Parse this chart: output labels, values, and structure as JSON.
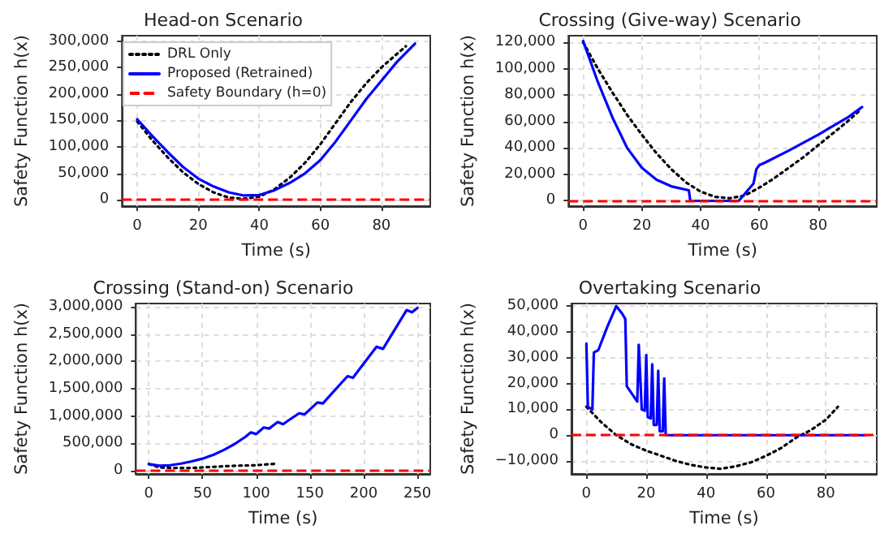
{
  "chart_data": [
    {
      "type": "line",
      "title": "Head-on Scenario",
      "xlabel": "Time (s)",
      "ylabel": "Safety Function h(x)",
      "xlim": [
        -5,
        96
      ],
      "xticks": [
        0,
        20,
        40,
        60,
        80
      ],
      "ylim": [
        -12000,
        310000
      ],
      "yticks": [
        {
          "value": 0,
          "label": "0"
        },
        {
          "value": 50000,
          "label": "50,000"
        },
        {
          "value": 100000,
          "label": "100,000"
        },
        {
          "value": 150000,
          "label": "150,000"
        },
        {
          "value": 200000,
          "label": "200,000"
        },
        {
          "value": 250000,
          "label": "250,000"
        },
        {
          "value": 300000,
          "label": "300,000"
        }
      ],
      "grid": true,
      "legend": "top left",
      "marker": "none",
      "ref_lines": [
        {
          "axis": "y",
          "value": 0,
          "label": "Safety Boundary (h=0)",
          "color": "#ff0000",
          "line_style": "dashed"
        }
      ],
      "series": [
        {
          "name": "DRL Only",
          "color": "#000000",
          "line_style": "dotted",
          "x": [
            0,
            5,
            10,
            15,
            20,
            25,
            30,
            35,
            40,
            45,
            50,
            55,
            60,
            65,
            70,
            75,
            80,
            85,
            88
          ],
          "values": [
            148000,
            112000,
            80000,
            52000,
            30000,
            14000,
            4000,
            2000,
            6000,
            20000,
            42000,
            70000,
            105000,
            145000,
            185000,
            220000,
            250000,
            275000,
            290000
          ]
        },
        {
          "name": "Proposed (Retrained)",
          "color": "#0000ff",
          "line_style": "solid",
          "x": [
            0,
            5,
            10,
            15,
            20,
            25,
            30,
            35,
            40,
            45,
            50,
            55,
            60,
            65,
            70,
            75,
            80,
            85,
            91
          ],
          "values": [
            152000,
            120000,
            90000,
            62000,
            40000,
            25000,
            14000,
            8000,
            9000,
            18000,
            32000,
            50000,
            75000,
            110000,
            150000,
            190000,
            225000,
            260000,
            295000
          ]
        }
      ]
    },
    {
      "type": "line",
      "title": "Crossing (Give-way) Scenario",
      "xlabel": "Time (s)",
      "ylabel": "Safety Function h(x)",
      "xlim": [
        -5,
        100
      ],
      "xticks": [
        0,
        20,
        40,
        60,
        80
      ],
      "ylim": [
        -4000,
        125000
      ],
      "yticks": [
        {
          "value": 0,
          "label": "0"
        },
        {
          "value": 20000,
          "label": "20,000"
        },
        {
          "value": 40000,
          "label": "40,000"
        },
        {
          "value": 60000,
          "label": "60,000"
        },
        {
          "value": 80000,
          "label": "80,000"
        },
        {
          "value": 100000,
          "label": "100,000"
        },
        {
          "value": 120000,
          "label": "120,000"
        }
      ],
      "grid": true,
      "marker": "none",
      "ref_lines": [
        {
          "axis": "y",
          "value": 0,
          "color": "#ff0000",
          "line_style": "dashed"
        }
      ],
      "series": [
        {
          "color": "#000000",
          "line_style": "dotted",
          "x": [
            0,
            5,
            10,
            15,
            20,
            25,
            30,
            35,
            40,
            45,
            50,
            55,
            60,
            65,
            70,
            75,
            80,
            85,
            90,
            94
          ],
          "values": [
            120000,
            100000,
            82000,
            65000,
            50000,
            36000,
            24000,
            14000,
            7000,
            3000,
            2000,
            4000,
            10000,
            17000,
            25000,
            33000,
            42000,
            51000,
            60000,
            68000
          ]
        },
        {
          "color": "#0000ff",
          "line_style": "solid",
          "x": [
            0,
            5,
            10,
            15,
            20,
            25,
            30,
            36,
            36.5,
            53,
            58,
            59,
            60,
            62,
            70,
            80,
            90,
            95
          ],
          "values": [
            121000,
            90000,
            63000,
            40000,
            25000,
            16000,
            11000,
            8000,
            0,
            0,
            13000,
            24000,
            27000,
            29000,
            38000,
            50000,
            63000,
            71000
          ]
        }
      ]
    },
    {
      "type": "line",
      "title": "Crossing (Stand-on) Scenario",
      "xlabel": "Time (s)",
      "ylabel": "Safety Function h(x)",
      "xlim": [
        -12,
        262
      ],
      "xticks": [
        0,
        50,
        100,
        150,
        200,
        250
      ],
      "ylim": [
        -60000,
        3060000
      ],
      "yticks": [
        {
          "value": 0,
          "label": "0"
        },
        {
          "value": 500000,
          "label": "500,000"
        },
        {
          "value": 1000000,
          "label": "1,000,000"
        },
        {
          "value": 1500000,
          "label": "1,500,000"
        },
        {
          "value": 2000000,
          "label": "2,000,000"
        },
        {
          "value": 2500000,
          "label": "2,500,000"
        },
        {
          "value": 3000000,
          "label": "3,000,000"
        }
      ],
      "grid": true,
      "marker": "none",
      "ref_lines": [
        {
          "axis": "y",
          "value": 0,
          "color": "#ff0000",
          "line_style": "dashed"
        }
      ],
      "series": [
        {
          "color": "#000000",
          "line_style": "dotted",
          "x": [
            0,
            10,
            20,
            40,
            60,
            80,
            100,
            120
          ],
          "values": [
            120000,
            60000,
            50000,
            50000,
            70000,
            90000,
            100000,
            130000
          ]
        },
        {
          "color": "#0000ff",
          "line_style": "solid",
          "x": [
            0,
            10,
            20,
            30,
            40,
            50,
            60,
            70,
            80,
            90,
            95,
            100,
            107,
            112,
            120,
            125,
            130,
            140,
            145,
            157,
            162,
            185,
            190,
            212,
            218,
            240,
            245,
            250
          ],
          "values": [
            120000,
            90000,
            100000,
            130000,
            170000,
            220000,
            290000,
            380000,
            490000,
            620000,
            700000,
            670000,
            790000,
            770000,
            890000,
            850000,
            920000,
            1050000,
            1030000,
            1250000,
            1230000,
            1730000,
            1700000,
            2270000,
            2230000,
            2940000,
            2900000,
            2980000
          ]
        }
      ]
    },
    {
      "type": "line",
      "title": "Overtaking Scenario",
      "xlabel": "Time (s)",
      "ylabel": "Safety Function h(x)",
      "xlim": [
        -5,
        97
      ],
      "xticks": [
        0,
        20,
        40,
        60,
        80
      ],
      "ylim": [
        -15000,
        51000
      ],
      "yticks": [
        {
          "value": -10000,
          "label": "−10,000"
        },
        {
          "value": 0,
          "label": "0"
        },
        {
          "value": 10000,
          "label": "10,000"
        },
        {
          "value": 20000,
          "label": "20,000"
        },
        {
          "value": 30000,
          "label": "30,000"
        },
        {
          "value": 40000,
          "label": "40,000"
        },
        {
          "value": 50000,
          "label": "50,000"
        }
      ],
      "grid": true,
      "marker": "none",
      "ref_lines": [
        {
          "axis": "y",
          "value": 0,
          "color": "#ff0000",
          "line_style": "dashed"
        }
      ],
      "series": [
        {
          "color": "#000000",
          "line_style": "dotted",
          "x": [
            0,
            5,
            10,
            15,
            20,
            25,
            30,
            35,
            40,
            45,
            50,
            55,
            60,
            65,
            70,
            75,
            80,
            84
          ],
          "values": [
            11000,
            5000,
            0,
            -3500,
            -6000,
            -8000,
            -10000,
            -11500,
            -12500,
            -13000,
            -12000,
            -10500,
            -8000,
            -5000,
            -1000,
            2000,
            6000,
            11000
          ]
        },
        {
          "color": "#0000ff",
          "line_style": "solid",
          "x": [
            0,
            0.5,
            2,
            2.5,
            4,
            7,
            10,
            12,
            13,
            13.5,
            17,
            17.5,
            18.5,
            19.5,
            20,
            20.5,
            21.5,
            22,
            22.5,
            23.5,
            24,
            24.5,
            25.5,
            26,
            26.5,
            93
          ],
          "values": [
            35500,
            11000,
            10000,
            32000,
            33000,
            42000,
            50000,
            47000,
            45000,
            19000,
            13000,
            35000,
            10000,
            9500,
            31000,
            7000,
            6500,
            27500,
            4000,
            4000,
            25000,
            1500,
            1500,
            22000,
            0,
            0
          ]
        }
      ]
    }
  ]
}
